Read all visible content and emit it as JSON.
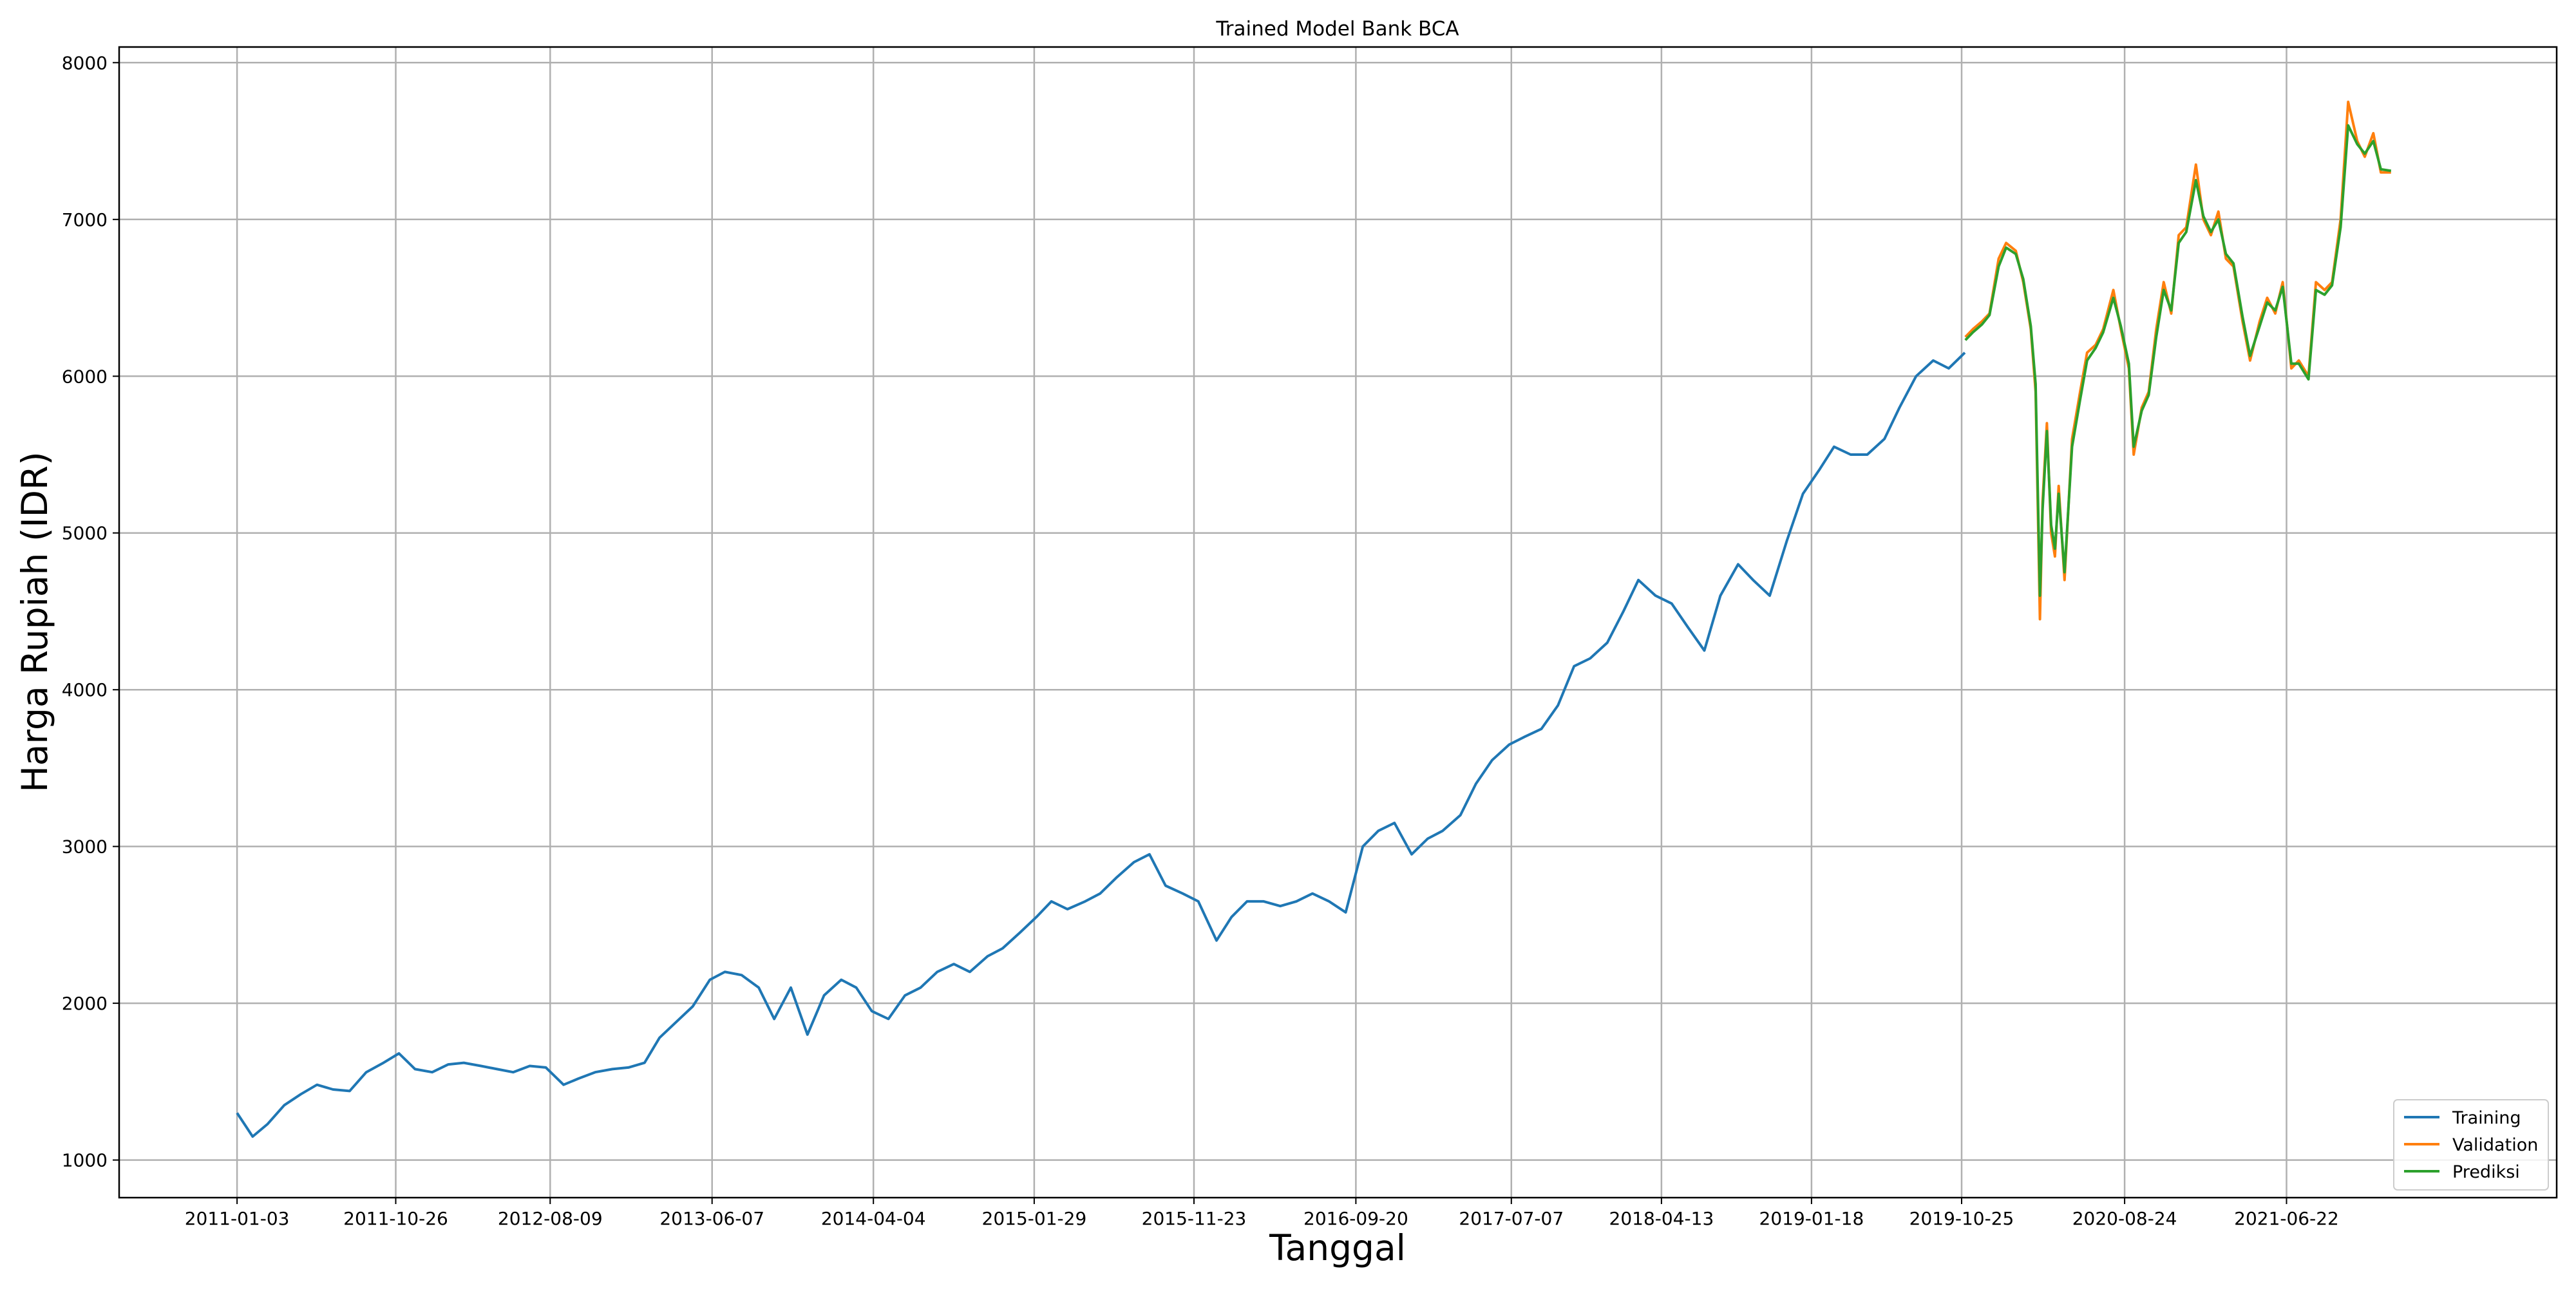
{
  "chart_data": {
    "type": "line",
    "title": "Trained Model Bank BCA",
    "xlabel": "Tanggal",
    "ylabel": "Harga Rupiah (IDR)",
    "x_type": "date",
    "xlim": [
      "2010-05-28",
      "2022-11-08"
    ],
    "ylim": [
      760,
      8100
    ],
    "x_ticks": [
      "2011-01-03",
      "2011-10-26",
      "2012-08-09",
      "2013-06-07",
      "2014-04-04",
      "2015-01-29",
      "2015-11-23",
      "2016-09-20",
      "2017-07-07",
      "2018-04-13",
      "2019-01-18",
      "2019-10-25",
      "2020-08-24",
      "2021-06-22"
    ],
    "y_ticks": [
      1000,
      2000,
      3000,
      4000,
      5000,
      6000,
      7000,
      8000
    ],
    "grid": true,
    "legend_position": "lower-right",
    "colors": {
      "Training": "#1f77b4",
      "Validation": "#ff7f0e",
      "Prediksi": "#2ca02c"
    },
    "series": [
      {
        "name": "Training",
        "x": [
          "2011-01-03",
          "2011-02-01",
          "2011-03-01",
          "2011-04-01",
          "2011-05-02",
          "2011-06-01",
          "2011-07-01",
          "2011-08-01",
          "2011-09-01",
          "2011-10-03",
          "2011-11-01",
          "2011-12-01",
          "2012-01-02",
          "2012-02-01",
          "2012-03-01",
          "2012-04-02",
          "2012-05-02",
          "2012-06-01",
          "2012-07-02",
          "2012-08-01",
          "2012-09-03",
          "2012-10-01",
          "2012-11-01",
          "2012-12-03",
          "2013-01-02",
          "2013-02-01",
          "2013-03-01",
          "2013-04-01",
          "2013-05-02",
          "2013-06-03",
          "2013-07-01",
          "2013-08-01",
          "2013-09-02",
          "2013-10-01",
          "2013-11-01",
          "2013-12-02",
          "2014-01-02",
          "2014-02-03",
          "2014-03-03",
          "2014-04-01",
          "2014-05-02",
          "2014-06-02",
          "2014-07-01",
          "2014-08-01",
          "2014-09-01",
          "2014-10-01",
          "2014-11-03",
          "2014-12-01",
          "2015-01-02",
          "2015-02-02",
          "2015-03-02",
          "2015-04-01",
          "2015-05-04",
          "2015-06-01",
          "2015-07-01",
          "2015-08-03",
          "2015-09-01",
          "2015-10-01",
          "2015-11-02",
          "2015-12-01",
          "2016-01-04",
          "2016-02-01",
          "2016-03-01",
          "2016-04-01",
          "2016-05-02",
          "2016-06-01",
          "2016-07-01",
          "2016-08-01",
          "2016-09-01",
          "2016-10-03",
          "2016-11-01",
          "2016-12-01",
          "2017-01-02",
          "2017-02-01",
          "2017-03-01",
          "2017-04-03",
          "2017-05-02",
          "2017-06-01",
          "2017-07-03",
          "2017-08-01",
          "2017-09-01",
          "2017-10-02",
          "2017-11-01",
          "2017-12-01",
          "2018-01-02",
          "2018-02-01",
          "2018-03-01",
          "2018-04-02",
          "2018-05-02",
          "2018-06-01",
          "2018-07-02",
          "2018-08-01",
          "2018-09-03",
          "2018-10-01",
          "2018-11-01",
          "2018-12-03",
          "2019-01-02",
          "2019-02-01",
          "2019-03-01",
          "2019-04-01",
          "2019-05-02",
          "2019-06-03",
          "2019-07-01",
          "2019-08-01",
          "2019-09-02",
          "2019-10-01",
          "2019-10-31"
        ],
        "y": [
          1300,
          1150,
          1230,
          1350,
          1420,
          1480,
          1450,
          1440,
          1560,
          1620,
          1680,
          1580,
          1560,
          1610,
          1620,
          1600,
          1580,
          1560,
          1600,
          1590,
          1480,
          1520,
          1560,
          1580,
          1590,
          1620,
          1780,
          1880,
          1980,
          2150,
          2200,
          2180,
          2100,
          1900,
          2100,
          1800,
          2050,
          2150,
          2100,
          1950,
          1900,
          2050,
          2100,
          2200,
          2250,
          2200,
          2300,
          2350,
          2450,
          2550,
          2650,
          2600,
          2650,
          2700,
          2800,
          2900,
          2950,
          2750,
          2700,
          2650,
          2400,
          2550,
          2650,
          2650,
          2620,
          2650,
          2700,
          2650,
          2580,
          3000,
          3100,
          3150,
          2950,
          3050,
          3100,
          3200,
          3400,
          3550,
          3650,
          3700,
          3750,
          3900,
          4150,
          4200,
          4300,
          4500,
          4700,
          4600,
          4550,
          4400,
          4250,
          4600,
          4800,
          4700,
          4600,
          4950,
          5250,
          5400,
          5550,
          5500,
          5500,
          5600,
          5800,
          6000,
          6100,
          6050,
          6150
        ]
      },
      {
        "name": "Validation",
        "x": [
          "2019-11-01",
          "2019-11-15",
          "2019-12-02",
          "2019-12-16",
          "2020-01-02",
          "2020-01-16",
          "2020-02-03",
          "2020-02-17",
          "2020-03-02",
          "2020-03-11",
          "2020-03-19",
          "2020-03-24",
          "2020-04-01",
          "2020-04-09",
          "2020-04-16",
          "2020-04-23",
          "2020-05-04",
          "2020-05-18",
          "2020-06-02",
          "2020-06-15",
          "2020-07-01",
          "2020-07-15",
          "2020-08-03",
          "2020-08-17",
          "2020-09-01",
          "2020-09-10",
          "2020-09-25",
          "2020-10-08",
          "2020-10-22",
          "2020-11-05",
          "2020-11-19",
          "2020-12-03",
          "2020-12-17",
          "2021-01-04",
          "2021-01-18",
          "2021-02-01",
          "2021-02-15",
          "2021-03-01",
          "2021-03-15",
          "2021-04-01",
          "2021-04-15",
          "2021-05-03",
          "2021-05-17",
          "2021-06-01",
          "2021-06-15",
          "2021-07-01",
          "2021-07-15",
          "2021-08-02",
          "2021-08-16",
          "2021-09-01",
          "2021-09-15",
          "2021-10-01",
          "2021-10-15",
          "2021-11-01",
          "2021-11-15",
          "2021-12-01",
          "2021-12-15",
          "2022-01-03"
        ],
        "y": [
          6250,
          6300,
          6350,
          6400,
          6750,
          6850,
          6800,
          6600,
          6300,
          5900,
          4450,
          5200,
          5700,
          5000,
          4850,
          5300,
          4700,
          5600,
          5900,
          6150,
          6200,
          6300,
          6550,
          6300,
          6050,
          5500,
          5800,
          5900,
          6300,
          6600,
          6400,
          6900,
          6950,
          7350,
          7000,
          6900,
          7050,
          6750,
          6700,
          6350,
          6100,
          6350,
          6500,
          6400,
          6600,
          6050,
          6100,
          6000,
          6600,
          6550,
          6600,
          7000,
          7750,
          7500,
          7400,
          7550,
          7300,
          7300
        ]
      },
      {
        "name": "Prediksi",
        "x": [
          "2019-11-01",
          "2019-11-15",
          "2019-12-02",
          "2019-12-16",
          "2020-01-02",
          "2020-01-16",
          "2020-02-03",
          "2020-02-17",
          "2020-03-02",
          "2020-03-11",
          "2020-03-19",
          "2020-03-24",
          "2020-04-01",
          "2020-04-09",
          "2020-04-16",
          "2020-04-23",
          "2020-05-04",
          "2020-05-18",
          "2020-06-02",
          "2020-06-15",
          "2020-07-01",
          "2020-07-15",
          "2020-08-03",
          "2020-08-17",
          "2020-09-01",
          "2020-09-10",
          "2020-09-25",
          "2020-10-08",
          "2020-10-22",
          "2020-11-05",
          "2020-11-19",
          "2020-12-03",
          "2020-12-17",
          "2021-01-04",
          "2021-01-18",
          "2021-02-01",
          "2021-02-15",
          "2021-03-01",
          "2021-03-15",
          "2021-04-01",
          "2021-04-15",
          "2021-05-03",
          "2021-05-17",
          "2021-06-01",
          "2021-06-15",
          "2021-07-01",
          "2021-07-15",
          "2021-08-02",
          "2021-08-16",
          "2021-09-01",
          "2021-09-15",
          "2021-10-01",
          "2021-10-15",
          "2021-11-01",
          "2021-11-15",
          "2021-12-01",
          "2021-12-15",
          "2022-01-03"
        ],
        "y": [
          6230,
          6280,
          6330,
          6390,
          6700,
          6820,
          6780,
          6620,
          6320,
          5950,
          4600,
          5150,
          5650,
          5050,
          4900,
          5250,
          4750,
          5550,
          5850,
          6100,
          6180,
          6280,
          6500,
          6320,
          6080,
          5550,
          5780,
          5880,
          6250,
          6550,
          6420,
          6850,
          6920,
          7250,
          7020,
          6920,
          7000,
          6780,
          6720,
          6380,
          6130,
          6320,
          6470,
          6420,
          6570,
          6080,
          6080,
          5980,
          6550,
          6520,
          6580,
          6950,
          7600,
          7480,
          7420,
          7500,
          7320,
          7310
        ]
      }
    ]
  }
}
